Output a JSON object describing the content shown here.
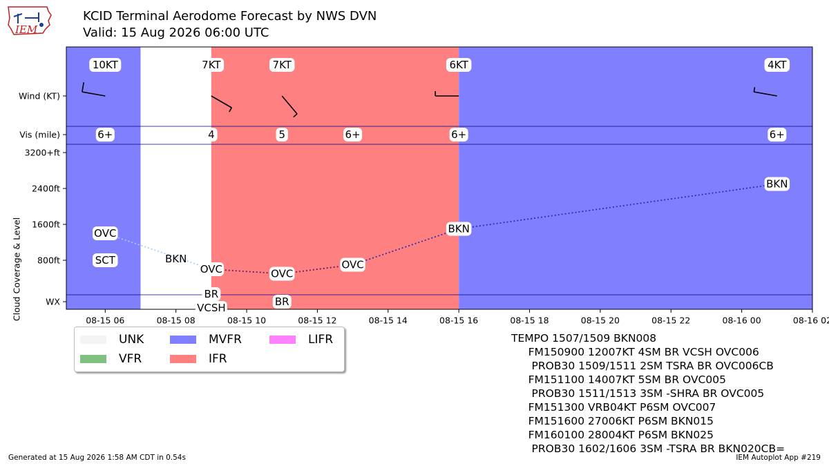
{
  "header": {
    "title": "KCID Terminal Aerodome Forecast by NWS DVN",
    "subtitle": "Valid: 15 Aug 2026 06:00 UTC",
    "logo_text": "IEM"
  },
  "chart_data": {
    "type": "timeline",
    "x_axis": {
      "range_hours_utc": [
        "2026-08-15 04:54",
        "2026-08-16 02:00"
      ],
      "tick_labels": [
        "08-15 06",
        "08-15 08",
        "08-15 10",
        "08-15 12",
        "08-15 14",
        "08-15 16",
        "08-15 18",
        "08-15 20",
        "08-15 22",
        "08-16 00",
        "08-16 02"
      ],
      "tick_hours": [
        6,
        8,
        10,
        12,
        14,
        16,
        18,
        20,
        22,
        24,
        26
      ]
    },
    "y_axis": {
      "title": "Cloud Coverage & Level",
      "rows": [
        "Wind (KT)",
        "Vis (mile)",
        "WX"
      ],
      "level_ticks": [
        "3200+ft",
        "2400ft",
        "1600ft",
        "800ft"
      ],
      "level_values": [
        3200,
        2400,
        1600,
        800
      ]
    },
    "flight_category_bands": [
      {
        "start": 4.9,
        "end": 7.0,
        "category": "MVFR"
      },
      {
        "start": 7.0,
        "end": 9.0,
        "category": "UNK"
      },
      {
        "start": 9.0,
        "end": 16.0,
        "category": "IFR"
      },
      {
        "start": 16.0,
        "end": 26.0,
        "category": "MVFR"
      }
    ],
    "category_colors": {
      "UNK": "#ffffff",
      "MVFR": "#8080ff",
      "IFR": "#ff8080",
      "VFR": "#80c080",
      "LIFR": "#ff80ff",
      "UNK_swatch": "#f4f4f4"
    },
    "wind": [
      {
        "hour": 6.0,
        "label": "10KT",
        "dir": 280,
        "speed": 10
      },
      {
        "hour": 9.0,
        "label": "7KT",
        "dir": 120,
        "speed": 7
      },
      {
        "hour": 11.0,
        "label": "7KT",
        "dir": 140,
        "speed": 7
      },
      {
        "hour": 16.0,
        "label": "6KT",
        "dir": 270,
        "speed": 6
      },
      {
        "hour": 25.0,
        "label": "4KT",
        "dir": 280,
        "speed": 4
      }
    ],
    "visibility": [
      {
        "hour": 6.0,
        "label": "6+"
      },
      {
        "hour": 9.0,
        "label": "4"
      },
      {
        "hour": 11.0,
        "label": "5"
      },
      {
        "hour": 13.0,
        "label": "6+"
      },
      {
        "hour": 16.0,
        "label": "6+"
      },
      {
        "hour": 25.0,
        "label": "6+"
      }
    ],
    "clouds": [
      {
        "hour": 6.0,
        "label": "OVC",
        "level": 1400,
        "boxed": true
      },
      {
        "hour": 6.0,
        "label": "SCT",
        "level": 800,
        "boxed": true
      },
      {
        "hour": 8.0,
        "label": "BKN",
        "level": 800,
        "boxed": false
      },
      {
        "hour": 9.0,
        "label": "OVC",
        "level": 600,
        "boxed": true
      },
      {
        "hour": 11.0,
        "label": "OVC",
        "level": 500,
        "boxed": true
      },
      {
        "hour": 13.0,
        "label": "OVC",
        "level": 700,
        "boxed": true
      },
      {
        "hour": 16.0,
        "label": "BKN",
        "level": 1500,
        "boxed": true
      },
      {
        "hour": 25.0,
        "label": "BKN",
        "level": 2500,
        "boxed": true
      }
    ],
    "ceiling_line": [
      {
        "hour": 6.0,
        "level": 1400,
        "color": "#4444dd",
        "style": "dotted-light"
      },
      {
        "hour": 9.0,
        "level": 600
      },
      {
        "hour": 11.0,
        "level": 500
      },
      {
        "hour": 13.0,
        "level": 700
      },
      {
        "hour": 16.0,
        "level": 1500
      },
      {
        "hour": 25.0,
        "level": 2500
      }
    ],
    "weather": [
      {
        "hour": 9.0,
        "lines": [
          "BR",
          "VCSH"
        ]
      },
      {
        "hour": 11.0,
        "lines": [
          "BR"
        ]
      }
    ]
  },
  "legend": {
    "items": [
      {
        "label": "UNK",
        "color": "#f4f4f4"
      },
      {
        "label": "MVFR",
        "color": "#8080ff"
      },
      {
        "label": "LIFR",
        "color": "#ff80ff"
      },
      {
        "label": "VFR",
        "color": "#80c080"
      },
      {
        "label": "IFR",
        "color": "#ff8080"
      }
    ]
  },
  "taf_text": [
    "TEMPO 1507/1509 BKN008",
    "     FM150900 12007KT 4SM BR VCSH OVC006",
    "      PROB30 1509/1511 2SM TSRA BR OVC006CB",
    "     FM151100 14007KT 5SM BR OVC005",
    "      PROB30 1511/1513 3SM -SHRA BR OVC005",
    "     FM151300 VRB04KT P6SM OVC007",
    "     FM151600 27006KT P6SM BKN015",
    "     FM160100 28004KT P6SM BKN025",
    "      PROB30 1602/1606 3SM -TSRA BR BKN020CB="
  ],
  "footer": {
    "generated": "Generated at 15 Aug 2026 1:58 AM CDT in 0.54s",
    "app": "IEM Autoplot App #219"
  }
}
